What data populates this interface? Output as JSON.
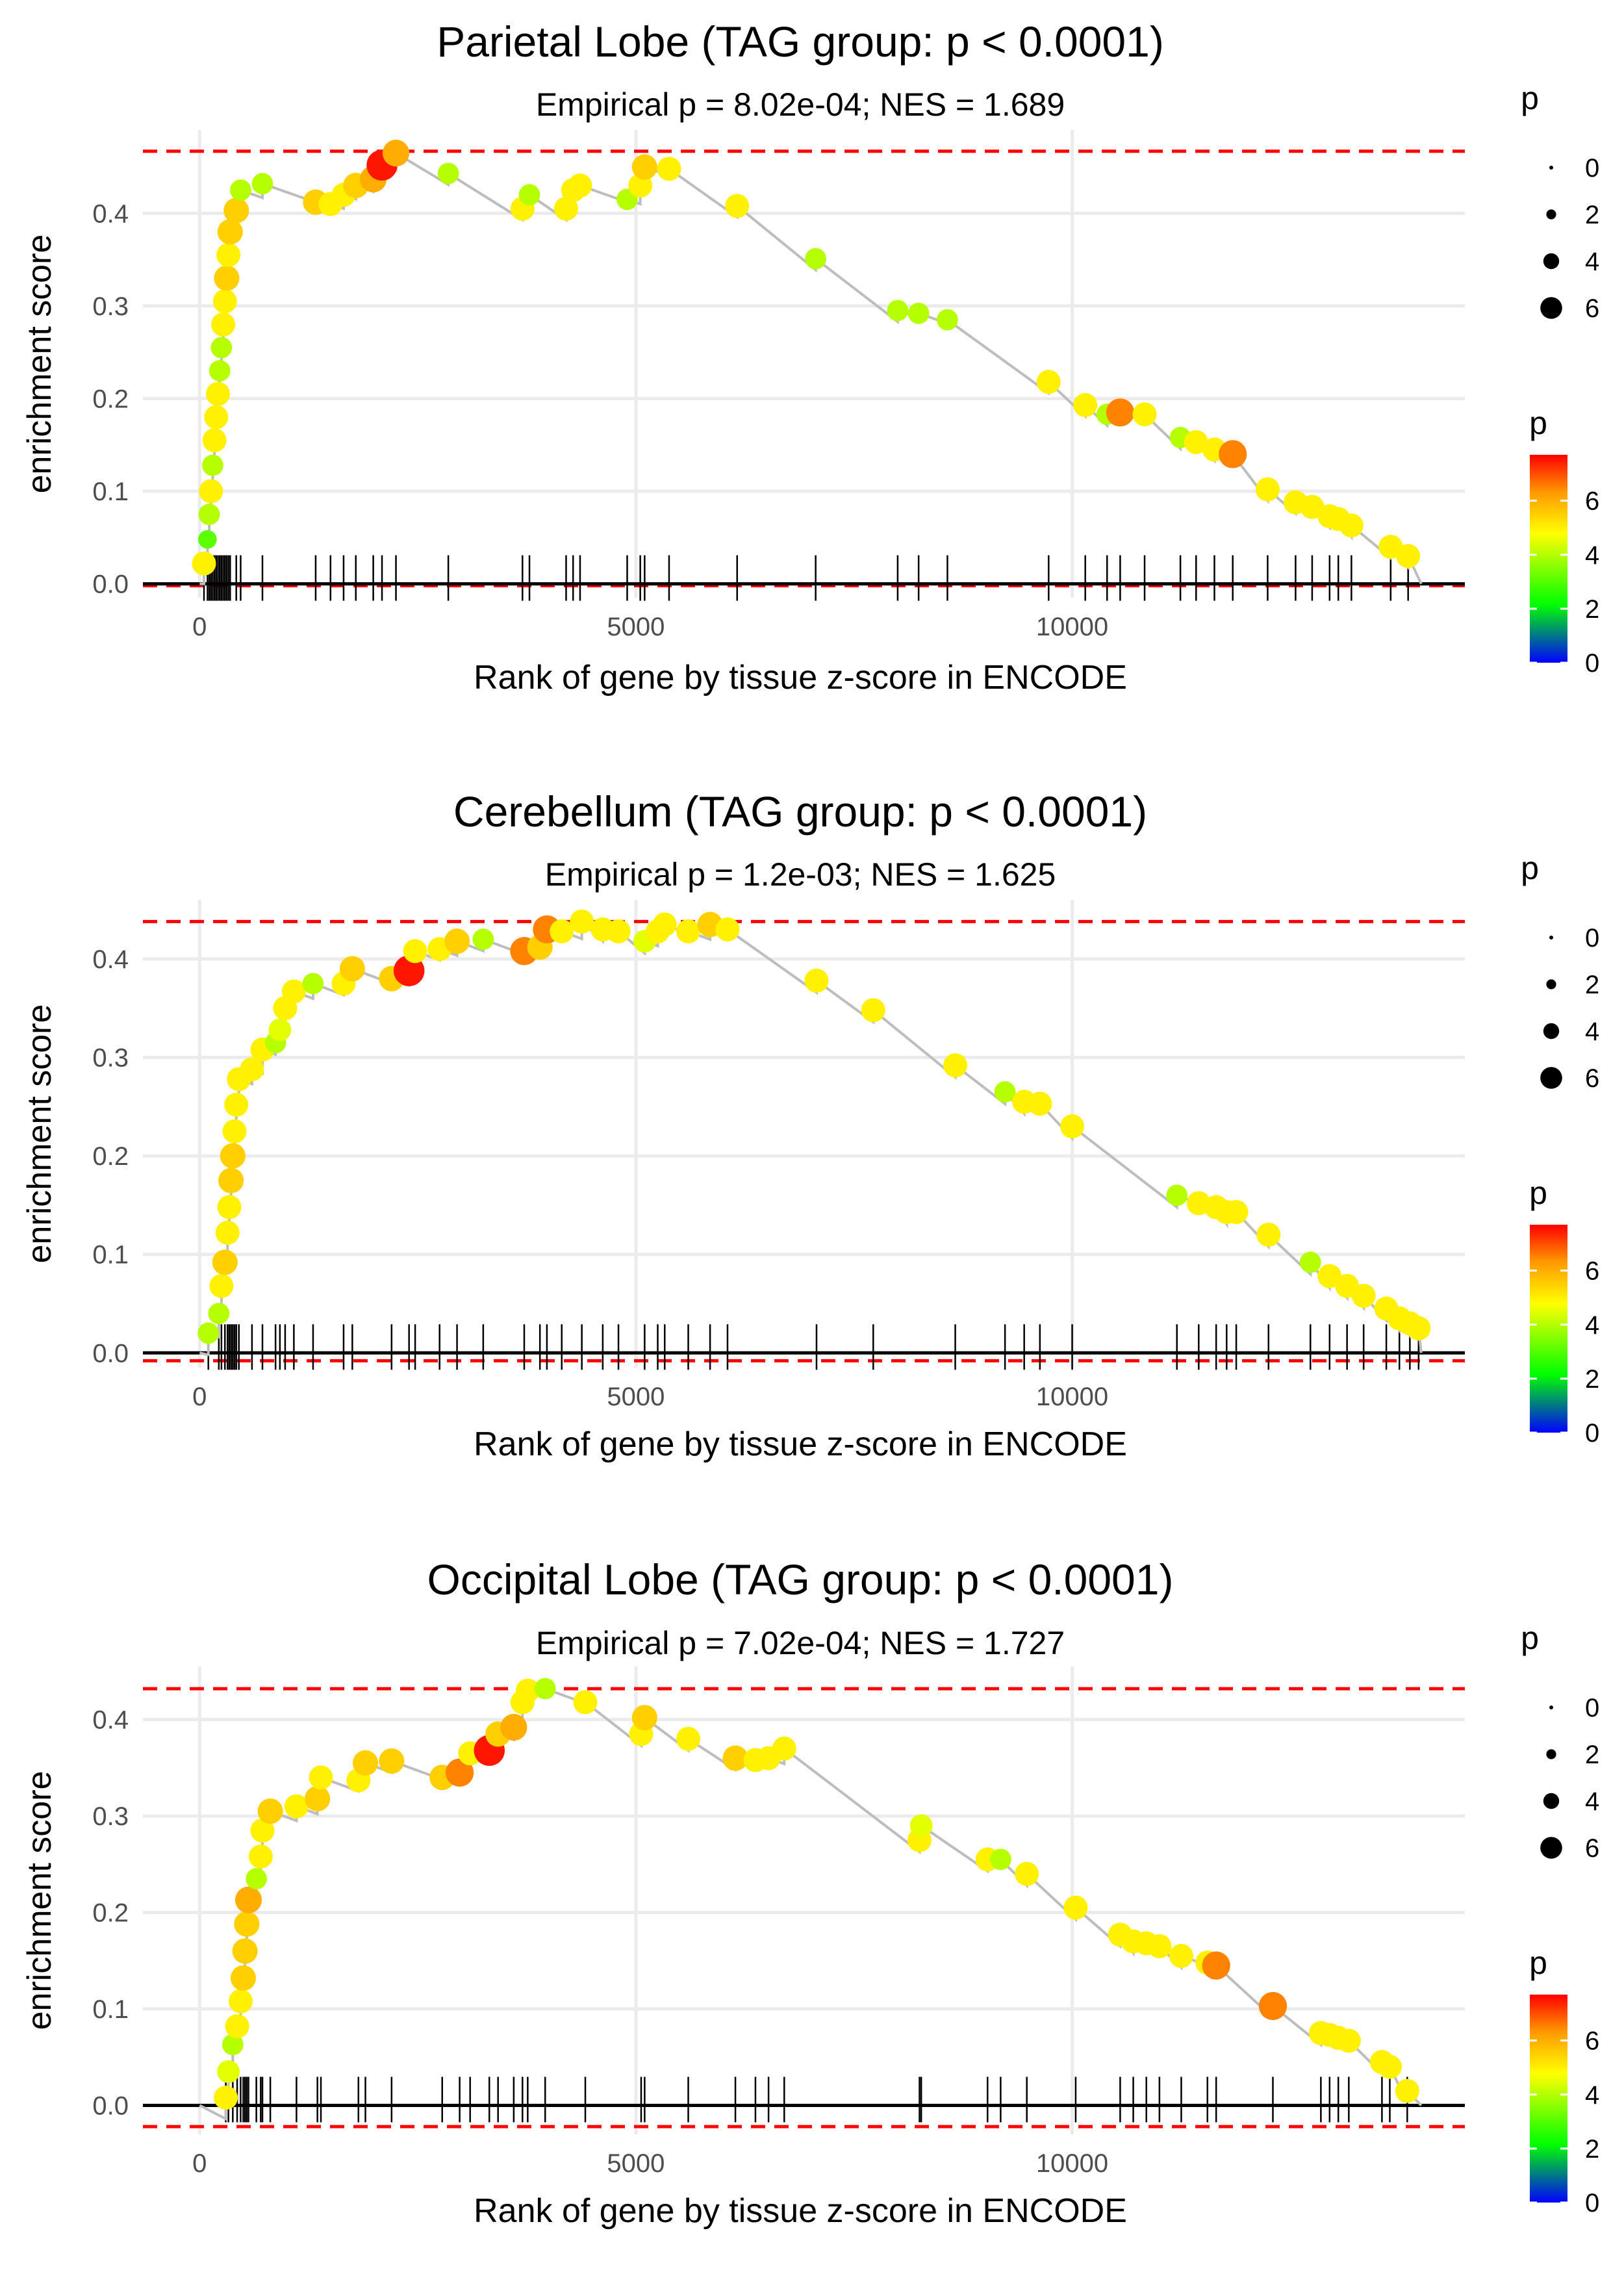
{
  "chart_data": [
    {
      "type": "scatter",
      "title": "Parietal Lobe (TAG group: p < 0.0001)",
      "subtitle": "Empirical p = 8.02e-04; NES = 1.689",
      "xlabel": "Rank of gene by tissue z-score in ENCODE",
      "ylabel": "enrichment score",
      "xlim": [
        -650,
        14500
      ],
      "ylim": [
        -0.015,
        0.49
      ],
      "xticks": [
        0,
        5000,
        10000
      ],
      "xtick_labels": [
        "0",
        "5000",
        "10000"
      ],
      "yticks": [
        0.0,
        0.1,
        0.2,
        0.3,
        0.4
      ],
      "ytick_labels": [
        "0.0",
        "0.1",
        "0.2",
        "0.3",
        "0.4"
      ],
      "max_es": 0.467,
      "min_es": -0.002,
      "end_rank": 14000,
      "points": [
        [
          50,
          0.022,
          5
        ],
        [
          90,
          0.048,
          3
        ],
        [
          110,
          0.075,
          4
        ],
        [
          130,
          0.1,
          5
        ],
        [
          150,
          0.128,
          4
        ],
        [
          170,
          0.155,
          5
        ],
        [
          190,
          0.18,
          5
        ],
        [
          210,
          0.205,
          5
        ],
        [
          230,
          0.23,
          4
        ],
        [
          250,
          0.255,
          4
        ],
        [
          270,
          0.28,
          5
        ],
        [
          290,
          0.305,
          5
        ],
        [
          310,
          0.33,
          5.5
        ],
        [
          330,
          0.355,
          5
        ],
        [
          350,
          0.38,
          5.5
        ],
        [
          420,
          0.403,
          5.5
        ],
        [
          470,
          0.425,
          4
        ],
        [
          720,
          0.432,
          4
        ],
        [
          1330,
          0.412,
          5.5
        ],
        [
          1500,
          0.41,
          5
        ],
        [
          1650,
          0.42,
          5
        ],
        [
          1790,
          0.43,
          5.5
        ],
        [
          1990,
          0.437,
          6
        ],
        [
          2090,
          0.452,
          7.5
        ],
        [
          2250,
          0.465,
          6
        ],
        [
          2850,
          0.443,
          4
        ],
        [
          3700,
          0.405,
          5
        ],
        [
          3780,
          0.42,
          4
        ],
        [
          4200,
          0.405,
          5
        ],
        [
          4280,
          0.425,
          5
        ],
        [
          4360,
          0.43,
          5
        ],
        [
          4900,
          0.415,
          4
        ],
        [
          5050,
          0.43,
          5
        ],
        [
          5100,
          0.45,
          5.5
        ],
        [
          5380,
          0.448,
          5
        ],
        [
          6160,
          0.408,
          5
        ],
        [
          7060,
          0.351,
          4
        ],
        [
          8000,
          0.295,
          4
        ],
        [
          8240,
          0.292,
          4
        ],
        [
          8570,
          0.285,
          4
        ],
        [
          9730,
          0.218,
          5
        ],
        [
          10150,
          0.193,
          5
        ],
        [
          10400,
          0.183,
          4
        ],
        [
          10550,
          0.185,
          6.5
        ],
        [
          10830,
          0.183,
          5
        ],
        [
          11240,
          0.158,
          4
        ],
        [
          11420,
          0.153,
          5
        ],
        [
          11630,
          0.145,
          5
        ],
        [
          11840,
          0.14,
          6.5
        ],
        [
          12240,
          0.102,
          5
        ],
        [
          12560,
          0.088,
          5
        ],
        [
          12750,
          0.083,
          5
        ],
        [
          12950,
          0.073,
          5
        ],
        [
          13050,
          0.07,
          5
        ],
        [
          13200,
          0.063,
          5
        ],
        [
          13650,
          0.04,
          5
        ],
        [
          13850,
          0.03,
          5
        ]
      ]
    },
    {
      "type": "scatter",
      "title": "Cerebellum (TAG group: p < 0.0001)",
      "subtitle": "Empirical p = 1.2e-03; NES = 1.625",
      "xlabel": "Rank of gene by tissue z-score in ENCODE",
      "ylabel": "enrichment score",
      "xlim": [
        -650,
        14500
      ],
      "ylim": [
        -0.015,
        0.46
      ],
      "xticks": [
        0,
        5000,
        10000
      ],
      "xtick_labels": [
        "0",
        "5000",
        "10000"
      ],
      "yticks": [
        0.0,
        0.1,
        0.2,
        0.3,
        0.4
      ],
      "ytick_labels": [
        "0.0",
        "0.1",
        "0.2",
        "0.3",
        "0.4"
      ],
      "max_es": 0.438,
      "min_es": -0.008,
      "end_rank": 14000,
      "points": [
        [
          100,
          0.02,
          4
        ],
        [
          220,
          0.04,
          4
        ],
        [
          250,
          0.068,
          5
        ],
        [
          290,
          0.092,
          5.5
        ],
        [
          320,
          0.122,
          5
        ],
        [
          340,
          0.148,
          5
        ],
        [
          360,
          0.175,
          5.5
        ],
        [
          380,
          0.2,
          5.5
        ],
        [
          400,
          0.225,
          5
        ],
        [
          420,
          0.252,
          5
        ],
        [
          450,
          0.278,
          5
        ],
        [
          600,
          0.288,
          5
        ],
        [
          720,
          0.308,
          5
        ],
        [
          870,
          0.315,
          4
        ],
        [
          920,
          0.328,
          4.5
        ],
        [
          980,
          0.35,
          5
        ],
        [
          1080,
          0.367,
          5
        ],
        [
          1300,
          0.375,
          4
        ],
        [
          1650,
          0.375,
          5
        ],
        [
          1750,
          0.39,
          5.5
        ],
        [
          2200,
          0.38,
          5.5
        ],
        [
          2400,
          0.388,
          7.5
        ],
        [
          2470,
          0.408,
          5
        ],
        [
          2750,
          0.41,
          5
        ],
        [
          2950,
          0.418,
          5.5
        ],
        [
          3250,
          0.42,
          4
        ],
        [
          3720,
          0.408,
          6.5
        ],
        [
          3900,
          0.412,
          5.5
        ],
        [
          3980,
          0.43,
          6.5
        ],
        [
          4150,
          0.428,
          5
        ],
        [
          4380,
          0.438,
          5
        ],
        [
          4620,
          0.43,
          5
        ],
        [
          4800,
          0.428,
          5
        ],
        [
          5100,
          0.418,
          4.5
        ],
        [
          5250,
          0.428,
          5
        ],
        [
          5330,
          0.435,
          5
        ],
        [
          5600,
          0.428,
          5
        ],
        [
          5850,
          0.435,
          5.5
        ],
        [
          6050,
          0.43,
          5
        ],
        [
          7070,
          0.378,
          5
        ],
        [
          7720,
          0.348,
          5
        ],
        [
          8660,
          0.292,
          5
        ],
        [
          9230,
          0.265,
          4
        ],
        [
          9450,
          0.255,
          5
        ],
        [
          9630,
          0.253,
          5
        ],
        [
          10000,
          0.23,
          5
        ],
        [
          11200,
          0.16,
          4
        ],
        [
          11450,
          0.152,
          5
        ],
        [
          11650,
          0.148,
          5
        ],
        [
          11770,
          0.143,
          5
        ],
        [
          11880,
          0.143,
          5
        ],
        [
          12250,
          0.12,
          5
        ],
        [
          12730,
          0.092,
          4
        ],
        [
          12950,
          0.078,
          5
        ],
        [
          13150,
          0.068,
          5
        ],
        [
          13340,
          0.058,
          5
        ],
        [
          13600,
          0.045,
          5
        ],
        [
          13750,
          0.035,
          5
        ],
        [
          13870,
          0.03,
          5
        ],
        [
          13970,
          0.025,
          5
        ]
      ]
    },
    {
      "type": "scatter",
      "title": "Occipital Lobe (TAG group: p < 0.0001)",
      "subtitle": "Empirical p = 7.02e-04; NES = 1.727",
      "xlabel": "Rank of gene by tissue z-score in ENCODE",
      "ylabel": "enrichment score",
      "xlim": [
        -650,
        14500
      ],
      "ylim": [
        -0.03,
        0.455
      ],
      "xticks": [
        0,
        5000,
        10000
      ],
      "xtick_labels": [
        "0",
        "5000",
        "10000"
      ],
      "yticks": [
        0.0,
        0.1,
        0.2,
        0.3,
        0.4
      ],
      "ytick_labels": [
        "0.0",
        "0.1",
        "0.2",
        "0.3",
        "0.4"
      ],
      "max_es": 0.432,
      "min_es": -0.022,
      "end_rank": 14000,
      "points": [
        [
          300,
          0.008,
          5
        ],
        [
          330,
          0.035,
          4.5
        ],
        [
          380,
          0.063,
          4
        ],
        [
          430,
          0.082,
          5
        ],
        [
          470,
          0.108,
          5
        ],
        [
          500,
          0.132,
          5.5
        ],
        [
          520,
          0.16,
          5.5
        ],
        [
          540,
          0.188,
          5.5
        ],
        [
          560,
          0.213,
          6
        ],
        [
          650,
          0.235,
          4
        ],
        [
          700,
          0.258,
          5
        ],
        [
          720,
          0.285,
          5
        ],
        [
          810,
          0.305,
          5.5
        ],
        [
          1110,
          0.31,
          5
        ],
        [
          1350,
          0.318,
          5.5
        ],
        [
          1390,
          0.34,
          5
        ],
        [
          1820,
          0.337,
          5
        ],
        [
          1900,
          0.355,
          5.5
        ],
        [
          2200,
          0.357,
          5.5
        ],
        [
          2780,
          0.34,
          5.5
        ],
        [
          2980,
          0.345,
          6.5
        ],
        [
          3100,
          0.365,
          5
        ],
        [
          3320,
          0.368,
          7.5
        ],
        [
          3420,
          0.385,
          5.5
        ],
        [
          3600,
          0.392,
          6
        ],
        [
          3700,
          0.418,
          5
        ],
        [
          3760,
          0.43,
          5
        ],
        [
          3960,
          0.432,
          4
        ],
        [
          4420,
          0.418,
          5
        ],
        [
          5060,
          0.385,
          5
        ],
        [
          5100,
          0.402,
          5.5
        ],
        [
          5600,
          0.38,
          5
        ],
        [
          6140,
          0.36,
          5.5
        ],
        [
          6370,
          0.358,
          5
        ],
        [
          6520,
          0.36,
          5
        ],
        [
          6700,
          0.37,
          5
        ],
        [
          8250,
          0.275,
          5
        ],
        [
          8270,
          0.29,
          4.5
        ],
        [
          9030,
          0.255,
          5
        ],
        [
          9180,
          0.255,
          4
        ],
        [
          9480,
          0.24,
          5
        ],
        [
          10040,
          0.205,
          5
        ],
        [
          10550,
          0.177,
          5
        ],
        [
          10700,
          0.17,
          5
        ],
        [
          10850,
          0.168,
          5
        ],
        [
          11000,
          0.165,
          5
        ],
        [
          11250,
          0.155,
          5
        ],
        [
          11550,
          0.148,
          5
        ],
        [
          11650,
          0.145,
          6.5
        ],
        [
          12300,
          0.103,
          6.5
        ],
        [
          12850,
          0.075,
          5
        ],
        [
          12950,
          0.073,
          5
        ],
        [
          13050,
          0.07,
          5
        ],
        [
          13170,
          0.067,
          5
        ],
        [
          13550,
          0.045,
          5
        ],
        [
          13640,
          0.04,
          5
        ],
        [
          13840,
          0.015,
          5
        ]
      ]
    }
  ],
  "size_legend": {
    "title": "p",
    "labels": [
      "0",
      "2",
      "4",
      "6"
    ],
    "values": [
      0,
      2,
      4,
      6
    ]
  },
  "color_legend": {
    "title": "p",
    "labels": [
      "0",
      "2",
      "4",
      "6"
    ],
    "values": [
      0,
      2,
      4,
      6
    ],
    "range": [
      0,
      7.7
    ],
    "gradient_colors": [
      "#0000ff",
      "#00ff00",
      "#ffff00",
      "#ff0000"
    ]
  },
  "colors": {
    "grid": "#ebebeb",
    "reference_line": "#ff0000",
    "es_line": "#bdbdbd",
    "rug": "#000000"
  }
}
